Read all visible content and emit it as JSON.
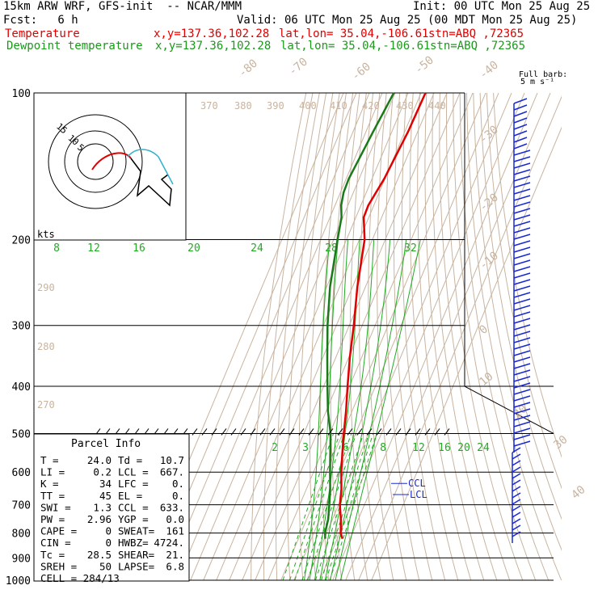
{
  "header": {
    "model": "15km ARW WRF, GFS-init  -- NCAR/MMM",
    "init": "Init: 00 UTC Mon 25 Aug 25",
    "fcst": "Fcst:   6 h",
    "valid": "Valid: 06 UTC Mon 25 Aug 25 (00 MDT Mon 25 Aug 25)",
    "temp_label": "Temperature",
    "temp_xy": "x,y=137.36,102.28",
    "temp_latlon": "lat,lon= 35.04,-106.61",
    "temp_stn": "stn=ABQ ,72365",
    "dew_label": "Dewpoint temperature",
    "dew_xy": "x,y=137.36,102.28",
    "dew_latlon": "lat,lon= 35.04,-106.61",
    "dew_stn": "stn=ABQ ,72365"
  },
  "barb_legend": {
    "line1": "Full barb:",
    "line2": "5 m s⁻¹"
  },
  "colors": {
    "temperature": "#e00000",
    "dewpoint": "#1a7a1a",
    "isobar": "#000000",
    "isotherm": "#c8b4a0",
    "mixing_ratio": "#22aa22",
    "dry_adiabat": "#c8b4a0",
    "moist_adiabat": "#22aa22",
    "hodograph_cyan": "#30b0d0",
    "wind_barb": "#1a2ad0"
  },
  "chart_data": {
    "type": "line",
    "title": "",
    "xlabel": "",
    "ylabel": "",
    "pressure_levels": [
      100,
      200,
      300,
      400,
      500,
      600,
      700,
      800,
      900,
      1000
    ],
    "isotherm_labels": [
      "-80",
      "-70",
      "-60",
      "-50",
      "-40",
      "-30",
      "-20",
      "-10",
      "0",
      "10",
      "20",
      "30",
      "40"
    ],
    "theta_labels": [
      "370",
      "380",
      "390",
      "400",
      "410",
      "420",
      "430",
      "440",
      "290",
      "280",
      "270"
    ],
    "mixing_ratio_labels_upper": [
      "8",
      "12",
      "16",
      "20",
      "24",
      "28",
      "32"
    ],
    "mixing_ratio_labels_lower": [
      "2",
      "3",
      "4",
      "6",
      "8",
      "12",
      "16",
      "20",
      "24"
    ],
    "series": [
      {
        "name": "Temperature",
        "points": [
          [
            100,
            -56.6
          ],
          [
            120,
            -57.4
          ],
          [
            150,
            -60.6
          ],
          [
            170,
            -64.3
          ],
          [
            180,
            -63.9
          ],
          [
            200,
            -56.0
          ],
          [
            250,
            -46.3
          ],
          [
            300,
            -36.5
          ],
          [
            350,
            -29.0
          ],
          [
            400,
            -21.5
          ],
          [
            450,
            -14.6
          ],
          [
            500,
            -9.1
          ],
          [
            550,
            -3.7
          ],
          [
            600,
            1.5
          ],
          [
            650,
            7.1
          ],
          [
            700,
            11.0
          ],
          [
            750,
            16.5
          ],
          [
            800,
            20.8
          ],
          [
            822,
            24.0
          ]
        ]
      },
      {
        "name": "Dewpoint temperature",
        "points": [
          [
            100,
            -81.1
          ],
          [
            120,
            -84.4
          ],
          [
            150,
            -88.0
          ],
          [
            160,
            -87.6
          ],
          [
            170,
            -85.3
          ],
          [
            180,
            -81.1
          ],
          [
            200,
            -76.9
          ],
          [
            250,
            -67.4
          ],
          [
            300,
            -56.8
          ],
          [
            350,
            -46.4
          ],
          [
            400,
            -37.1
          ],
          [
            450,
            -28.6
          ],
          [
            500,
            -19.3
          ],
          [
            550,
            -13.0
          ],
          [
            600,
            -7.2
          ],
          [
            650,
            -1.6
          ],
          [
            700,
            2.8
          ],
          [
            750,
            6.7
          ],
          [
            800,
            8.7
          ],
          [
            822,
            10.7
          ]
        ]
      }
    ],
    "markers": {
      "ccl": "CCL",
      "lcl": "LCL"
    },
    "hodograph": {
      "rings": [
        "5",
        "10",
        "15"
      ],
      "units": "kts"
    },
    "parcel_info": {
      "title": "Parcel Info",
      "rows": [
        [
          "T  =",
          "24.0",
          "Td =",
          "10.7"
        ],
        [
          "LI =",
          "0.2",
          "LCL =",
          "667."
        ],
        [
          "K  =",
          "34",
          "LFC =",
          "0."
        ],
        [
          "TT =",
          "45",
          "EL  =",
          "0."
        ],
        [
          "SWI =",
          "1.3",
          "CCL =",
          "633."
        ],
        [
          "PW =",
          "2.96",
          "YGP =",
          "0.0"
        ],
        [
          "CAPE =",
          "0",
          "SWEAT=",
          "161"
        ],
        [
          "CIN =",
          "0",
          "HWBZ=",
          "4724."
        ],
        [
          "Tc =",
          "28.5",
          "SHEAR=",
          "21."
        ],
        [
          "SREH =",
          "50",
          "LAPSE=",
          "6.8"
        ],
        [
          "CELL = 284/13",
          "",
          "",
          ""
        ]
      ]
    }
  }
}
